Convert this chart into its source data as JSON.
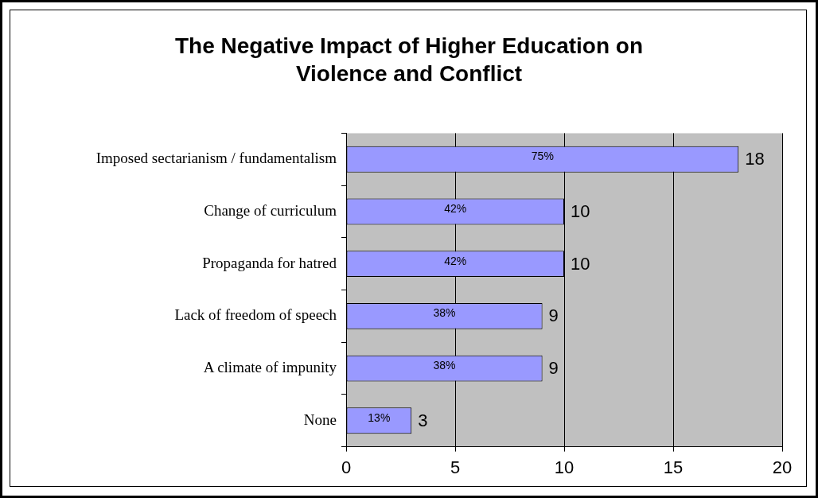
{
  "chart_data": {
    "type": "bar",
    "orientation": "horizontal",
    "title": "The Negative Impact of Higher Education on Violence and Conflict",
    "categories": [
      "Imposed sectarianism / fundamentalism",
      "Change of curriculum",
      "Propaganda for hatred",
      "Lack of freedom of speech",
      "A climate of impunity",
      "None"
    ],
    "values": [
      18,
      10,
      10,
      9,
      9,
      3
    ],
    "color": "#9999ff",
    "xlim": [
      0,
      20
    ],
    "xticks": [
      0,
      5,
      10,
      15,
      20
    ],
    "grid": "x",
    "data_labels": true,
    "legend": false,
    "annotations": [
      "75%",
      "42%",
      "42%",
      "38%",
      "38%",
      "13%"
    ]
  }
}
